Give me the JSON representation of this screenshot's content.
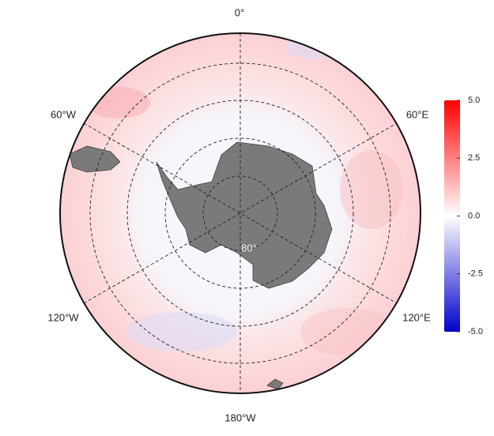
{
  "map": {
    "longitude_labels": [
      "0°",
      "60°E",
      "120°E",
      "180°W",
      "120°W",
      "60°W"
    ],
    "latitude_label": "80°",
    "colorbar": {
      "lim": [
        -5,
        5
      ],
      "colors": [
        "#0000cc",
        "#ffffff",
        "#ff0000"
      ],
      "ticks": [
        {
          "value": 5,
          "label": "5.0"
        },
        2.5,
        {
          "value": 0,
          "label": "0.0"
        },
        -2.5,
        {
          "value": -5,
          "label": "-5.0"
        }
      ]
    }
  }
}
